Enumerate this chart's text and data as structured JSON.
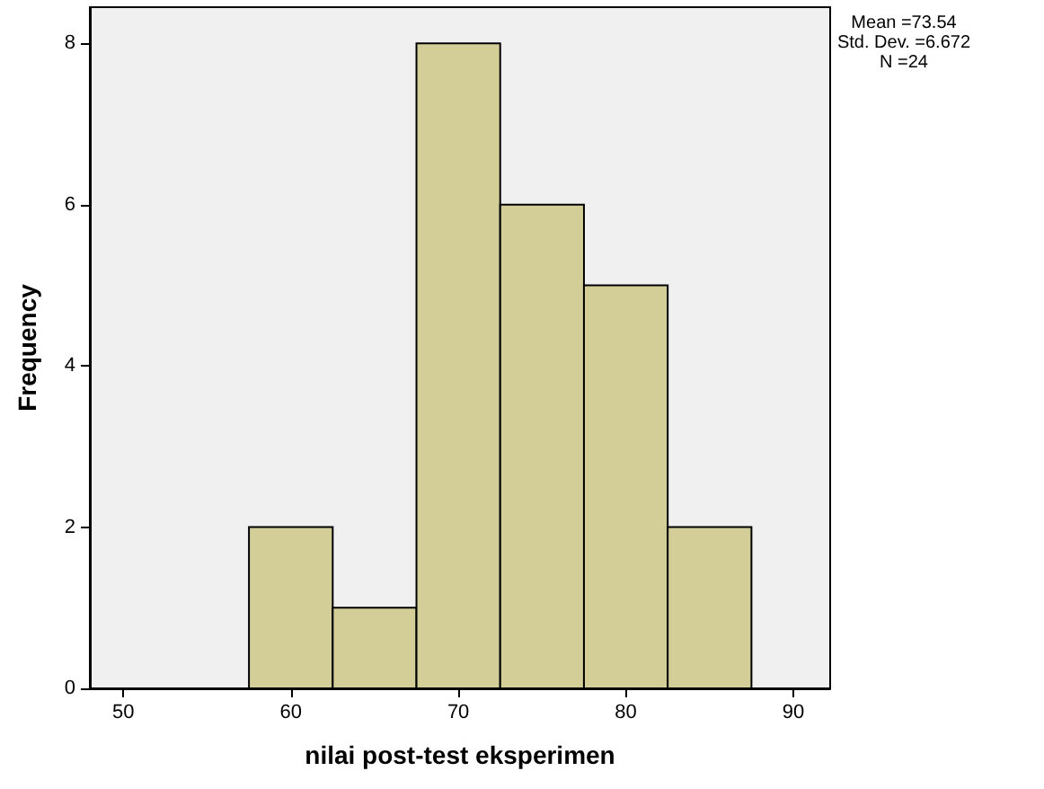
{
  "chart_data": {
    "type": "histogram",
    "xlabel": "nilai post-test eksperimen",
    "ylabel": "Frequency",
    "bins": [
      57.5,
      62.5,
      67.5,
      72.5,
      77.5,
      82.5,
      87.5
    ],
    "values": [
      2,
      1,
      8,
      6,
      5,
      2
    ],
    "color": "#d3ce98",
    "xlim": [
      48,
      92.2
    ],
    "ylim": [
      0,
      8.45
    ],
    "xticks": [
      50,
      60,
      70,
      80,
      90
    ],
    "yticks": [
      0,
      2,
      4,
      6,
      8
    ],
    "grid": false,
    "annotations": [
      "Mean =73.54",
      "Std. Dev. =6.672",
      "N =24"
    ]
  }
}
